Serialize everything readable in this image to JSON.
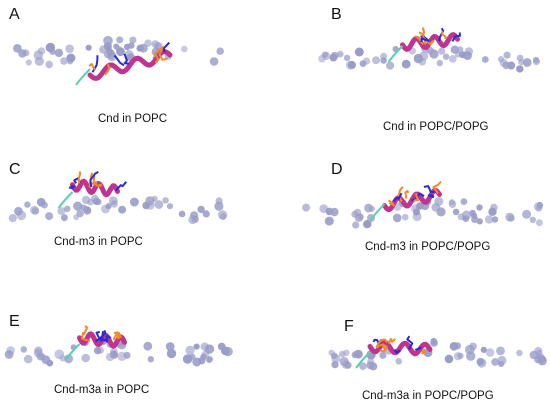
{
  "panels": [
    {
      "label": "A",
      "caption": "Cnd in POPC"
    },
    {
      "label": "B",
      "caption": "Cnd in POPC/POPG"
    },
    {
      "label": "C",
      "caption": "Cnd-m3 in POPC"
    },
    {
      "label": "D",
      "caption": "Cnd-m3 in POPC/POPG"
    },
    {
      "label": "E",
      "caption": "Cnd-m3a  in POPC"
    },
    {
      "label": "F",
      "caption": "Cnd-m3a in POPC/POPG"
    }
  ],
  "colors": {
    "lipid": "#9a9cc8",
    "helix": "#c0338f",
    "basic_residue": "#2a2ad6",
    "hydrophobic_residue": "#f08a24",
    "coil": "#5ad0b0"
  }
}
